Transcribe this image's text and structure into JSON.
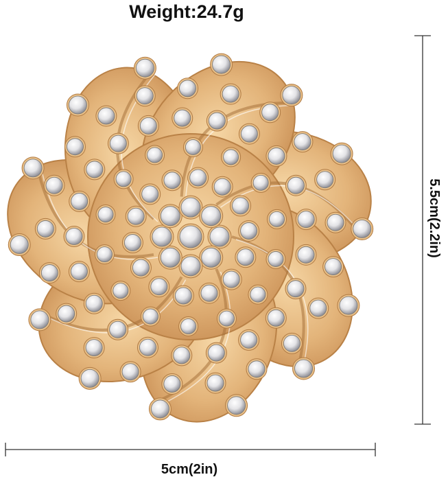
{
  "header": {
    "title": "Weight:24.7g"
  },
  "dimensions": {
    "height": "5.5cm(2.2in)",
    "width": "5cm(2in)"
  }
}
